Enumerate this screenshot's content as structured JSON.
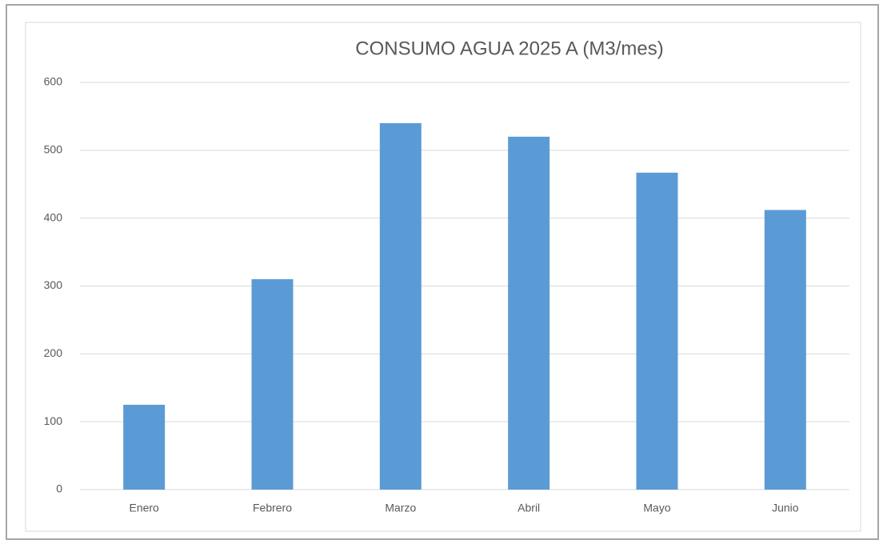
{
  "chart_data": {
    "type": "bar",
    "title": "CONSUMO AGUA 2025 A (M3/mes)",
    "categories": [
      "Enero",
      "Febrero",
      "Marzo",
      "Abril",
      "Mayo",
      "Junio"
    ],
    "values": [
      125,
      310,
      540,
      520,
      467,
      412
    ],
    "color": "#5b9bd5",
    "ylim": [
      0,
      600
    ],
    "yticks": [
      0,
      100,
      200,
      300,
      400,
      500,
      600
    ],
    "grid": true
  }
}
